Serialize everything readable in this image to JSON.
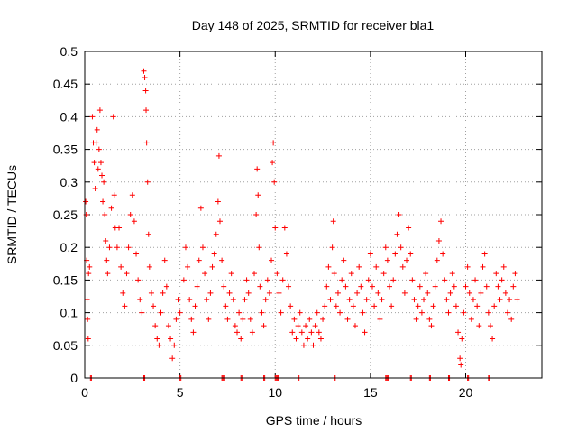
{
  "chart_data": {
    "type": "scatter",
    "title": "Day 148 of 2025, SRMTID for receiver bla1",
    "xlabel": "GPS time / hours",
    "ylabel": "SRMTID / TECUs",
    "xlim": [
      0,
      24
    ],
    "ylim": [
      0,
      0.5
    ],
    "x_ticks": [
      0,
      5,
      10,
      15,
      20
    ],
    "y_ticks": [
      0,
      0.05,
      0.1,
      0.15,
      0.2,
      0.25,
      0.3,
      0.35,
      0.4,
      0.45,
      0.5
    ],
    "x_tick_labels": [
      "0",
      "5",
      "10",
      "15",
      "20"
    ],
    "y_tick_labels": [
      "0",
      "0.05",
      "0.1",
      "0.15",
      "0.2",
      "0.25",
      "0.3",
      "0.35",
      "0.4",
      "0.45",
      "0.5"
    ],
    "grid": true,
    "marker": "+",
    "series_color": "#ff0000",
    "points": [
      [
        0.05,
        0.27
      ],
      [
        0.08,
        0.25
      ],
      [
        0.1,
        0.18
      ],
      [
        0.12,
        0.12
      ],
      [
        0.15,
        0.09
      ],
      [
        0.18,
        0.06
      ],
      [
        0.2,
        0.16
      ],
      [
        0.25,
        0.17
      ],
      [
        0.4,
        0.4
      ],
      [
        0.45,
        0.36
      ],
      [
        0.5,
        0.33
      ],
      [
        0.55,
        0.29
      ],
      [
        0.6,
        0.36
      ],
      [
        0.65,
        0.38
      ],
      [
        0.7,
        0.32
      ],
      [
        0.75,
        0.35
      ],
      [
        0.8,
        0.41
      ],
      [
        0.85,
        0.33
      ],
      [
        0.9,
        0.31
      ],
      [
        0.95,
        0.27
      ],
      [
        1.0,
        0.3
      ],
      [
        1.05,
        0.25
      ],
      [
        1.1,
        0.21
      ],
      [
        1.15,
        0.18
      ],
      [
        1.2,
        0.16
      ],
      [
        1.3,
        0.2
      ],
      [
        1.4,
        0.26
      ],
      [
        1.5,
        0.4
      ],
      [
        1.55,
        0.28
      ],
      [
        1.6,
        0.23
      ],
      [
        1.7,
        0.2
      ],
      [
        1.8,
        0.23
      ],
      [
        1.9,
        0.17
      ],
      [
        2.0,
        0.13
      ],
      [
        2.1,
        0.11
      ],
      [
        2.2,
        0.16
      ],
      [
        2.3,
        0.2
      ],
      [
        2.4,
        0.25
      ],
      [
        2.5,
        0.28
      ],
      [
        2.6,
        0.24
      ],
      [
        2.7,
        0.19
      ],
      [
        2.8,
        0.15
      ],
      [
        2.9,
        0.12
      ],
      [
        3.0,
        0.1
      ],
      [
        3.1,
        0.47
      ],
      [
        3.15,
        0.46
      ],
      [
        3.2,
        0.44
      ],
      [
        3.22,
        0.41
      ],
      [
        3.25,
        0.36
      ],
      [
        3.3,
        0.3
      ],
      [
        3.35,
        0.22
      ],
      [
        3.4,
        0.17
      ],
      [
        3.5,
        0.13
      ],
      [
        3.6,
        0.11
      ],
      [
        3.7,
        0.08
      ],
      [
        3.8,
        0.06
      ],
      [
        3.9,
        0.05
      ],
      [
        4.0,
        0.1
      ],
      [
        4.1,
        0.13
      ],
      [
        4.2,
        0.18
      ],
      [
        4.3,
        0.14
      ],
      [
        4.4,
        0.08
      ],
      [
        4.5,
        0.06
      ],
      [
        4.6,
        0.03
      ],
      [
        4.7,
        0.05
      ],
      [
        4.8,
        0.09
      ],
      [
        4.9,
        0.12
      ],
      [
        5.0,
        0.1
      ],
      [
        5.2,
        0.15
      ],
      [
        5.3,
        0.2
      ],
      [
        5.4,
        0.17
      ],
      [
        5.5,
        0.12
      ],
      [
        5.6,
        0.09
      ],
      [
        5.7,
        0.07
      ],
      [
        5.8,
        0.11
      ],
      [
        5.9,
        0.14
      ],
      [
        6.0,
        0.18
      ],
      [
        6.1,
        0.26
      ],
      [
        6.2,
        0.2
      ],
      [
        6.3,
        0.16
      ],
      [
        6.4,
        0.12
      ],
      [
        6.5,
        0.09
      ],
      [
        6.6,
        0.13
      ],
      [
        6.7,
        0.17
      ],
      [
        6.8,
        0.19
      ],
      [
        6.9,
        0.22
      ],
      [
        7.0,
        0.27
      ],
      [
        7.05,
        0.34
      ],
      [
        7.1,
        0.24
      ],
      [
        7.2,
        0.18
      ],
      [
        7.3,
        0.14
      ],
      [
        7.4,
        0.11
      ],
      [
        7.5,
        0.09
      ],
      [
        7.6,
        0.13
      ],
      [
        7.7,
        0.16
      ],
      [
        7.8,
        0.12
      ],
      [
        7.9,
        0.08
      ],
      [
        8.0,
        0.07
      ],
      [
        8.1,
        0.1
      ],
      [
        8.2,
        0.06
      ],
      [
        8.3,
        0.09
      ],
      [
        8.4,
        0.12
      ],
      [
        8.5,
        0.15
      ],
      [
        8.6,
        0.13
      ],
      [
        8.7,
        0.09
      ],
      [
        8.8,
        0.07
      ],
      [
        8.9,
        0.16
      ],
      [
        9.0,
        0.25
      ],
      [
        9.05,
        0.32
      ],
      [
        9.1,
        0.28
      ],
      [
        9.15,
        0.2
      ],
      [
        9.2,
        0.14
      ],
      [
        9.3,
        0.1
      ],
      [
        9.4,
        0.08
      ],
      [
        9.5,
        0.12
      ],
      [
        9.6,
        0.15
      ],
      [
        9.7,
        0.13
      ],
      [
        9.8,
        0.18
      ],
      [
        9.85,
        0.33
      ],
      [
        9.9,
        0.36
      ],
      [
        9.95,
        0.3
      ],
      [
        10.0,
        0.23
      ],
      [
        10.1,
        0.16
      ],
      [
        10.2,
        0.13
      ],
      [
        10.3,
        0.1
      ],
      [
        10.4,
        0.15
      ],
      [
        10.5,
        0.23
      ],
      [
        10.6,
        0.19
      ],
      [
        10.7,
        0.14
      ],
      [
        10.8,
        0.11
      ],
      [
        10.9,
        0.07
      ],
      [
        11.0,
        0.09
      ],
      [
        11.1,
        0.06
      ],
      [
        11.2,
        0.08
      ],
      [
        11.3,
        0.1
      ],
      [
        11.4,
        0.07
      ],
      [
        11.5,
        0.05
      ],
      [
        11.6,
        0.08
      ],
      [
        11.7,
        0.06
      ],
      [
        11.8,
        0.09
      ],
      [
        11.9,
        0.07
      ],
      [
        12.0,
        0.05
      ],
      [
        12.1,
        0.08
      ],
      [
        12.2,
        0.1
      ],
      [
        12.3,
        0.07
      ],
      [
        12.4,
        0.06
      ],
      [
        12.5,
        0.09
      ],
      [
        12.6,
        0.11
      ],
      [
        12.7,
        0.14
      ],
      [
        12.8,
        0.17
      ],
      [
        12.9,
        0.12
      ],
      [
        13.0,
        0.2
      ],
      [
        13.05,
        0.24
      ],
      [
        13.1,
        0.16
      ],
      [
        13.2,
        0.11
      ],
      [
        13.3,
        0.13
      ],
      [
        13.4,
        0.1
      ],
      [
        13.5,
        0.15
      ],
      [
        13.6,
        0.18
      ],
      [
        13.7,
        0.14
      ],
      [
        13.8,
        0.09
      ],
      [
        13.9,
        0.12
      ],
      [
        14.0,
        0.16
      ],
      [
        14.1,
        0.11
      ],
      [
        14.2,
        0.08
      ],
      [
        14.3,
        0.13
      ],
      [
        14.4,
        0.17
      ],
      [
        14.5,
        0.14
      ],
      [
        14.6,
        0.1
      ],
      [
        14.7,
        0.07
      ],
      [
        14.8,
        0.12
      ],
      [
        14.9,
        0.15
      ],
      [
        15.0,
        0.19
      ],
      [
        15.1,
        0.14
      ],
      [
        15.2,
        0.11
      ],
      [
        15.3,
        0.17
      ],
      [
        15.4,
        0.13
      ],
      [
        15.5,
        0.09
      ],
      [
        15.6,
        0.12
      ],
      [
        15.7,
        0.16
      ],
      [
        15.8,
        0.2
      ],
      [
        15.9,
        0.18
      ],
      [
        16.0,
        0.14
      ],
      [
        16.1,
        0.11
      ],
      [
        16.2,
        0.15
      ],
      [
        16.3,
        0.19
      ],
      [
        16.4,
        0.22
      ],
      [
        16.5,
        0.25
      ],
      [
        16.6,
        0.2
      ],
      [
        16.7,
        0.17
      ],
      [
        16.8,
        0.13
      ],
      [
        16.9,
        0.18
      ],
      [
        17.0,
        0.23
      ],
      [
        17.1,
        0.19
      ],
      [
        17.2,
        0.15
      ],
      [
        17.3,
        0.12
      ],
      [
        17.4,
        0.09
      ],
      [
        17.5,
        0.11
      ],
      [
        17.6,
        0.14
      ],
      [
        17.7,
        0.1
      ],
      [
        17.8,
        0.12
      ],
      [
        17.9,
        0.16
      ],
      [
        18.0,
        0.13
      ],
      [
        18.1,
        0.09
      ],
      [
        18.2,
        0.08
      ],
      [
        18.3,
        0.11
      ],
      [
        18.4,
        0.14
      ],
      [
        18.5,
        0.18
      ],
      [
        18.6,
        0.21
      ],
      [
        18.7,
        0.24
      ],
      [
        18.8,
        0.19
      ],
      [
        18.9,
        0.15
      ],
      [
        19.0,
        0.12
      ],
      [
        19.1,
        0.1
      ],
      [
        19.2,
        0.13
      ],
      [
        19.3,
        0.16
      ],
      [
        19.4,
        0.14
      ],
      [
        19.5,
        0.11
      ],
      [
        19.6,
        0.07
      ],
      [
        19.7,
        0.03
      ],
      [
        19.75,
        0.02
      ],
      [
        19.8,
        0.06
      ],
      [
        19.9,
        0.1
      ],
      [
        20.0,
        0.14
      ],
      [
        20.1,
        0.17
      ],
      [
        20.2,
        0.13
      ],
      [
        20.3,
        0.09
      ],
      [
        20.4,
        0.12
      ],
      [
        20.5,
        0.15
      ],
      [
        20.6,
        0.11
      ],
      [
        20.7,
        0.08
      ],
      [
        20.8,
        0.13
      ],
      [
        20.9,
        0.17
      ],
      [
        21.0,
        0.19
      ],
      [
        21.1,
        0.14
      ],
      [
        21.2,
        0.1
      ],
      [
        21.3,
        0.08
      ],
      [
        21.4,
        0.06
      ],
      [
        21.5,
        0.11
      ],
      [
        21.6,
        0.16
      ],
      [
        21.7,
        0.14
      ],
      [
        21.8,
        0.12
      ],
      [
        21.9,
        0.15
      ],
      [
        22.0,
        0.17
      ],
      [
        22.1,
        0.13
      ],
      [
        22.2,
        0.1
      ],
      [
        22.3,
        0.12
      ],
      [
        22.4,
        0.09
      ],
      [
        22.5,
        0.14
      ],
      [
        22.6,
        0.16
      ],
      [
        22.7,
        0.12
      ]
    ],
    "zero_points": [
      0.3,
      3.1,
      5.0,
      7.2,
      7.3,
      8.2,
      9.4,
      10.0,
      10.1,
      11.2,
      13.1,
      15.8,
      15.9,
      17.1,
      18.1,
      19.1,
      20.1,
      21.2
    ]
  }
}
